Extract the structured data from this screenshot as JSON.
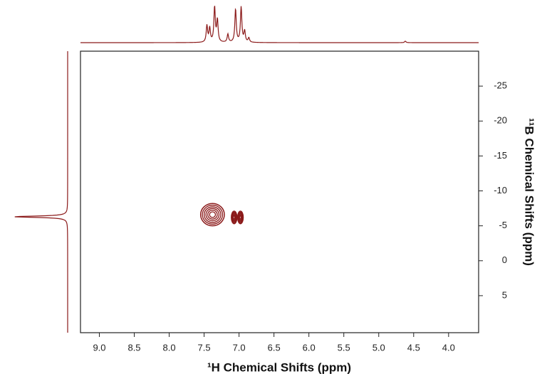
{
  "chart_data": {
    "type": "contour",
    "x_label": "¹H Chemical Shifts (ppm)",
    "y_label": "¹¹B Chemical Shifts (ppm)",
    "xlim": [
      9.27,
      3.57
    ],
    "xticks": [
      {
        "value": 9,
        "label": "9.0"
      },
      8.5,
      {
        "value": 8,
        "label": "8.0"
      },
      7.5,
      {
        "value": 7,
        "label": "7.0"
      },
      6.5,
      {
        "value": 6,
        "label": "6.0"
      },
      5.5,
      {
        "value": 5,
        "label": "5.0"
      },
      4.5,
      {
        "value": 4,
        "label": "4.0"
      }
    ],
    "ylim": [
      10.3,
      -30
    ],
    "yticks": [
      -25,
      -20,
      -15,
      -10,
      -5,
      0,
      5
    ],
    "color": "#8b1a1a",
    "x": [
      7.38,
      7.07,
      6.98
    ],
    "values": [
      -6.6,
      -6.2,
      -6.2
    ],
    "x_widths": [
      0.34,
      0.08,
      0.08
    ],
    "y_heights": [
      3.2,
      1.8,
      1.8
    ],
    "top_projection": {
      "x": [
        7.46,
        7.42,
        7.35,
        7.31,
        7.16,
        7.05,
        6.97,
        6.92,
        6.86,
        4.62
      ],
      "values": [
        45,
        38,
        95,
        60,
        22,
        90,
        95,
        30,
        12,
        4
      ]
    },
    "left_projection": {
      "x": [
        -6.3
      ],
      "values": [
        100
      ]
    }
  }
}
